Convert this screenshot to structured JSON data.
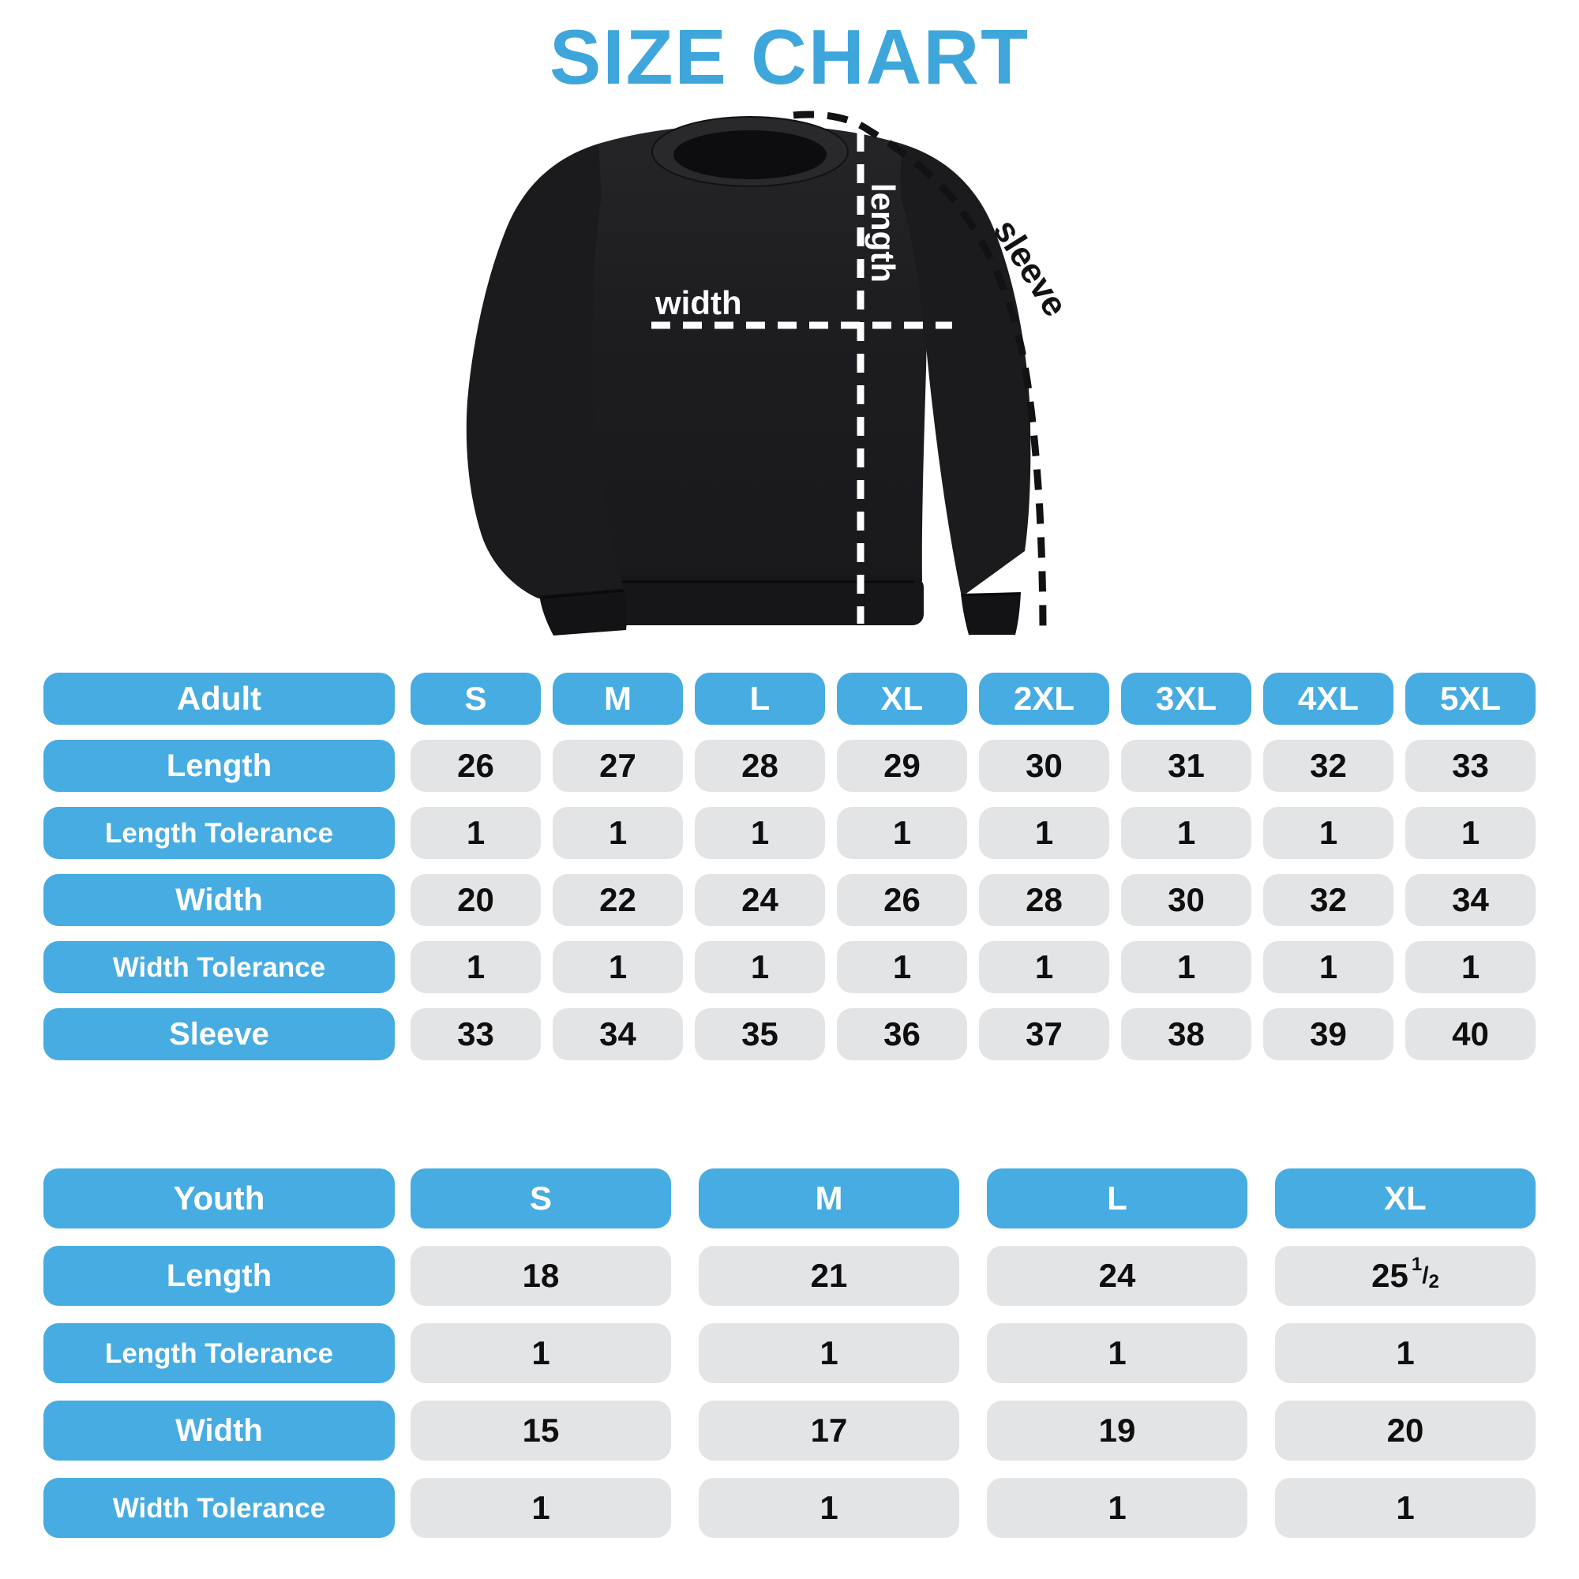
{
  "title": "SIZE CHART",
  "colors": {
    "accent_blue": "#47ACE1",
    "title_blue": "#3FA6DC",
    "cell_gray": "#E3E4E6",
    "text_black": "#0f0f10",
    "garment_black": "#1d1d20"
  },
  "diagram": {
    "width_label": "width",
    "length_label": "length",
    "sleeve_label": "sleeve"
  },
  "adult": {
    "header_label": "Adult",
    "sizes": [
      "S",
      "M",
      "L",
      "XL",
      "2XL",
      "3XL",
      "4XL",
      "5XL"
    ],
    "rows": [
      {
        "label": "Length",
        "values": [
          "26",
          "27",
          "28",
          "29",
          "30",
          "31",
          "32",
          "33"
        ]
      },
      {
        "label": "Length Tolerance",
        "values": [
          "1",
          "1",
          "1",
          "1",
          "1",
          "1",
          "1",
          "1"
        ]
      },
      {
        "label": "Width",
        "values": [
          "20",
          "22",
          "24",
          "26",
          "28",
          "30",
          "32",
          "34"
        ]
      },
      {
        "label": "Width Tolerance",
        "values": [
          "1",
          "1",
          "1",
          "1",
          "1",
          "1",
          "1",
          "1"
        ]
      },
      {
        "label": "Sleeve",
        "values": [
          "33",
          "34",
          "35",
          "36",
          "37",
          "38",
          "39",
          "40"
        ]
      }
    ]
  },
  "youth": {
    "header_label": "Youth",
    "sizes": [
      "S",
      "M",
      "L",
      "XL"
    ],
    "rows": [
      {
        "label": "Length",
        "values": [
          "18",
          "21",
          "24",
          "25 1/2"
        ]
      },
      {
        "label": "Length Tolerance",
        "values": [
          "1",
          "1",
          "1",
          "1"
        ]
      },
      {
        "label": "Width",
        "values": [
          "15",
          "17",
          "19",
          "20"
        ]
      },
      {
        "label": "Width Tolerance",
        "values": [
          "1",
          "1",
          "1",
          "1"
        ]
      }
    ]
  },
  "chart_data": [
    {
      "type": "table",
      "title": "Adult size chart (sweatshirt, inches)",
      "columns": [
        "Adult",
        "S",
        "M",
        "L",
        "XL",
        "2XL",
        "3XL",
        "4XL",
        "5XL"
      ],
      "rows": [
        [
          "Length",
          26,
          27,
          28,
          29,
          30,
          31,
          32,
          33
        ],
        [
          "Length Tolerance",
          1,
          1,
          1,
          1,
          1,
          1,
          1,
          1
        ],
        [
          "Width",
          20,
          22,
          24,
          26,
          28,
          30,
          32,
          34
        ],
        [
          "Width Tolerance",
          1,
          1,
          1,
          1,
          1,
          1,
          1,
          1
        ],
        [
          "Sleeve",
          33,
          34,
          35,
          36,
          37,
          38,
          39,
          40
        ]
      ]
    },
    {
      "type": "table",
      "title": "Youth size chart (sweatshirt, inches)",
      "columns": [
        "Youth",
        "S",
        "M",
        "L",
        "XL"
      ],
      "rows": [
        [
          "Length",
          18,
          21,
          24,
          25.5
        ],
        [
          "Length Tolerance",
          1,
          1,
          1,
          1
        ],
        [
          "Width",
          15,
          17,
          19,
          20
        ],
        [
          "Width Tolerance",
          1,
          1,
          1,
          1
        ]
      ]
    }
  ]
}
